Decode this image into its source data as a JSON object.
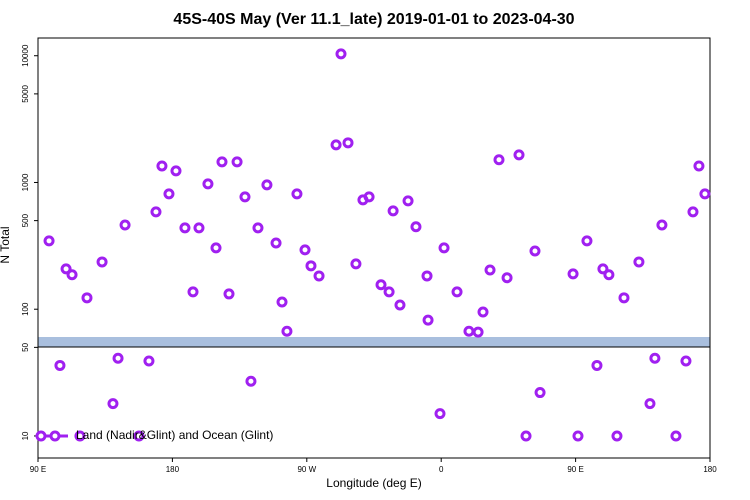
{
  "chart_data": {
    "type": "scatter",
    "title": "45S-40S May (Ver 11.1_late)   2019-01-01 to 2023-04-30",
    "x_label": "Longitude (deg E)",
    "y_label": "N Total",
    "x": [
      97.4,
      104.7,
      108.8,
      112.8,
      118.1,
      122.8,
      132.9,
      140.2,
      143.6,
      148.3,
      157.6,
      164.3,
      169.0,
      173.0,
      177.7,
      182.4,
      188.4,
      193.8,
      197.8,
      203.8,
      209.2,
      213.2,
      217.9,
      223.3,
      228.6,
      232.6,
      237.3,
      243.3,
      249.4,
      253.4,
      256.7,
      263.4,
      268.8,
      272.8,
      278.2,
      289.6,
      292.9,
      297.6,
      302.9,
      307.6,
      311.7,
      319.7,
      325.1,
      327.8,
      332.4,
      337.8,
      343.1,
      350.5,
      351.2,
      359.2,
      361.9,
      370.6,
      378.6,
      384.7,
      388.0,
      392.7,
      398.7,
      404.1,
      412.1,
      416.8,
      422.8,
      426.2,
      448.3,
      451.6,
      457.6,
      464.3,
      468.3,
      472.3,
      477.7,
      482.4,
      492.4,
      499.8,
      503.1,
      507.8,
      517.2,
      523.9,
      528.6,
      532.6,
      536.6
    ],
    "series": [
      {
        "name": "Land (Nadir&Glint) and Ocean (Glint)",
        "color": "#a020f0",
        "values": [
          346,
          36,
          208,
          187,
          10,
          123,
          236,
          18,
          41,
          462,
          10,
          39,
          586,
          1350,
          813,
          1235,
          438,
          137,
          438,
          975,
          305,
          1455,
          132,
          1455,
          770,
          27,
          438,
          957,
          333,
          114,
          67,
          813,
          294,
          220,
          183,
          1980,
          10350,
          2055,
          228,
          729,
          770,
          156,
          137,
          597,
          108,
          716,
          447,
          183,
          82,
          15,
          305,
          137,
          67,
          66,
          95,
          204,
          1510,
          177,
          1650,
          10,
          288,
          22,
          190,
          10,
          346,
          36,
          208,
          187,
          10,
          123,
          236,
          18,
          41,
          462,
          10,
          39,
          586,
          1350,
          813
        ]
      }
    ],
    "xlim": [
      90,
      540
    ],
    "xticks": [
      {
        "value": 90,
        "label": "90 E"
      },
      180,
      {
        "value": 270,
        "label": "90 W"
      },
      0,
      {
        "value": 450,
        "label": "90 E"
      },
      {
        "value": 540,
        "label": "180"
      }
    ],
    "ylim": [
      6.7,
      13800
    ],
    "yticks": [
      10,
      50,
      100,
      500,
      1000,
      5000,
      10000
    ],
    "log_y": true,
    "legend": "lower left"
  }
}
